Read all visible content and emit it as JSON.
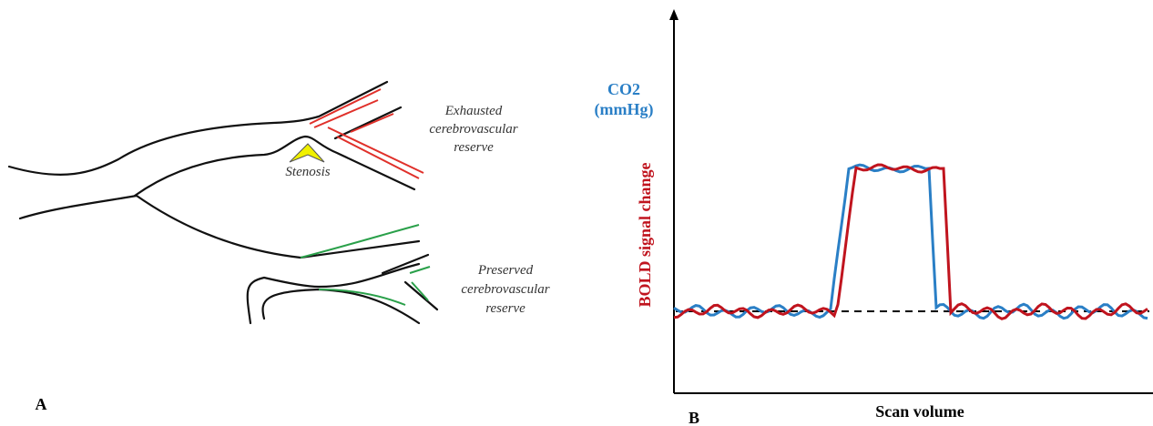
{
  "panel_a": {
    "label": "A",
    "exhausted": [
      "Exhausted",
      "cerebrovascular",
      "reserve"
    ],
    "stenosis": "Stenosis",
    "preserved": [
      "Preserved",
      "cerebrovascular",
      "reserve"
    ]
  },
  "panel_b": {
    "label": "B",
    "co2_label": [
      "CO2",
      "(mmHg)"
    ],
    "bold_label": "BOLD signal change",
    "x_label": "Scan volume"
  }
}
